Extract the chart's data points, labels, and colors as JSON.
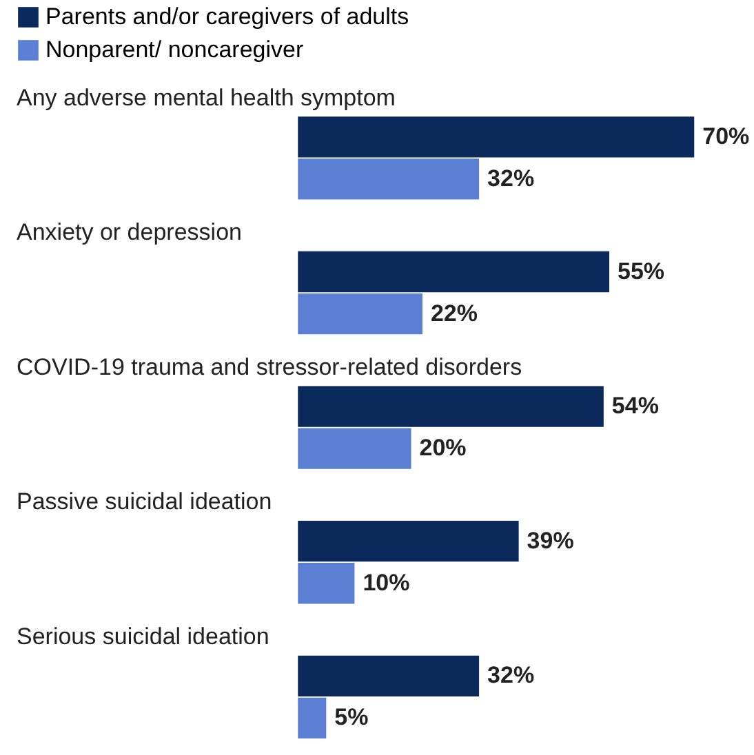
{
  "chart_data": {
    "type": "bar",
    "orientation": "horizontal",
    "legend": "top left",
    "categories": [
      "Any adverse mental health symptom",
      "Anxiety or depression",
      "COVID-19 trauma and stressor-related disorders",
      "Passive suicidal ideation",
      "Serious suicidal ideation"
    ],
    "series": [
      {
        "name": "Parents and/or caregivers of adults",
        "color": "#0b2a5b",
        "values": [
          70,
          55,
          54,
          39,
          32
        ],
        "value_labels": [
          "70%",
          "55%",
          "54%",
          "39%",
          "32%"
        ]
      },
      {
        "name": "Nonparent/ noncaregiver",
        "color": "#5b7fd2",
        "values": [
          32,
          22,
          20,
          10,
          5
        ],
        "value_labels": [
          "32%",
          "22%",
          "20%",
          "10%",
          "5%"
        ]
      }
    ]
  }
}
